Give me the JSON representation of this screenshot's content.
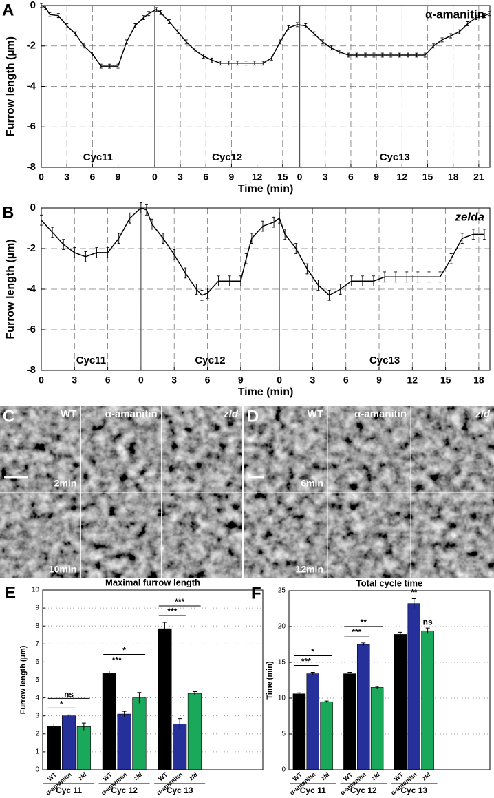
{
  "chart_data": [
    {
      "type": "line",
      "panel": "A",
      "title": "α-amanitin",
      "title_italic": false,
      "x_label": "Time (min)",
      "y_label": "Furrow length (µm)",
      "annotations": [
        "Cyc11",
        "Cyc12",
        "Cyc13"
      ],
      "boundaries": [
        13.3,
        30.3
      ],
      "xlim": [
        0,
        52.6
      ],
      "ylim": [
        -8,
        0
      ],
      "grid": true,
      "yticks": [
        0,
        -2,
        -4,
        -6,
        -8
      ],
      "xticks": [
        0,
        3,
        6,
        9,
        {
          "value": 13.3,
          "label": "0"
        },
        {
          "value": 16.3,
          "label": "3"
        },
        {
          "value": 19.3,
          "label": "6"
        },
        {
          "value": 22.3,
          "label": "9"
        },
        {
          "value": 25.3,
          "label": "12"
        },
        {
          "value": 28.3,
          "label": "15"
        },
        {
          "value": 30.3,
          "label": "0"
        },
        {
          "value": 33.3,
          "label": "3"
        },
        {
          "value": 36.3,
          "label": "6"
        },
        {
          "value": 39.3,
          "label": "9"
        },
        {
          "value": 42.3,
          "label": "12"
        },
        {
          "value": 45.3,
          "label": "15"
        },
        {
          "value": 48.3,
          "label": "18"
        },
        {
          "value": 51.3,
          "label": "21"
        }
      ],
      "x": [
        0,
        0.5,
        1,
        2,
        3,
        4,
        5,
        6,
        7,
        8,
        9,
        10,
        11,
        12,
        12.6,
        13.5,
        14,
        15,
        16,
        17,
        18,
        19,
        20,
        21,
        22,
        23,
        24,
        25,
        26,
        27,
        28,
        29,
        30,
        31,
        32,
        33,
        34,
        35,
        36,
        37,
        38,
        39,
        40,
        41,
        42,
        43,
        44,
        45,
        46,
        47,
        48,
        49,
        50,
        51,
        52,
        52.6
      ],
      "series": [
        {
          "color": "#000000",
          "values": [
            0,
            -0.1,
            -0.45,
            -0.5,
            -1.0,
            -1.4,
            -2.0,
            -2.4,
            -3.0,
            -3.0,
            -3.0,
            -1.8,
            -1.0,
            -0.6,
            -0.4,
            -0.2,
            -0.35,
            -0.8,
            -1.3,
            -1.8,
            -2.2,
            -2.5,
            -2.7,
            -2.85,
            -2.85,
            -2.85,
            -2.85,
            -2.85,
            -2.85,
            -2.6,
            -1.8,
            -1.1,
            -0.95,
            -1.0,
            -1.4,
            -1.8,
            -2.1,
            -2.3,
            -2.45,
            -2.45,
            -2.45,
            -2.45,
            -2.45,
            -2.45,
            -2.45,
            -2.45,
            -2.45,
            -2.45,
            -2.0,
            -1.7,
            -1.5,
            -1.3,
            -0.9,
            -0.6,
            -0.5,
            -0.4
          ],
          "errors": [
            0.1,
            0.1,
            0.1,
            0.1,
            0.1,
            0.1,
            0.1,
            0.1,
            0.1,
            0.1,
            0.1,
            0.1,
            0.1,
            0.1,
            0.1,
            0.1,
            0.1,
            0.1,
            0.1,
            0.1,
            0.1,
            0.1,
            0.1,
            0.1,
            0.1,
            0.1,
            0.1,
            0.1,
            0.1,
            0.1,
            0.1,
            0.1,
            0.1,
            0.1,
            0.1,
            0.1,
            0.1,
            0.1,
            0.1,
            0.1,
            0.1,
            0.1,
            0.1,
            0.1,
            0.1,
            0.1,
            0.1,
            0.1,
            0.1,
            0.1,
            0.1,
            0.1,
            0.1,
            0.1,
            0.1,
            0.1
          ]
        }
      ]
    },
    {
      "type": "line",
      "panel": "B",
      "title": "zelda",
      "title_italic": true,
      "x_label": "Time (min)",
      "y_label": "Furrow length (µm)",
      "annotations": [
        "Cyc11",
        "Cyc12",
        "Cyc13"
      ],
      "boundaries": [
        9,
        21.5
      ],
      "xlim": [
        0,
        40.5
      ],
      "ylim": [
        -8,
        0
      ],
      "grid": true,
      "yticks": [
        0,
        -2,
        -4,
        -6,
        -8
      ],
      "xticks": [
        0,
        3,
        6,
        {
          "value": 9,
          "label": "0"
        },
        {
          "value": 12,
          "label": "3"
        },
        {
          "value": 15,
          "label": "6"
        },
        {
          "value": 18,
          "label": "9"
        },
        {
          "value": 21.5,
          "label": "0"
        },
        {
          "value": 24.5,
          "label": "3"
        },
        {
          "value": 27.5,
          "label": "6"
        },
        {
          "value": 30.5,
          "label": "9"
        },
        {
          "value": 33.5,
          "label": "12"
        },
        {
          "value": 36.5,
          "label": "15"
        },
        {
          "value": 39.5,
          "label": "18"
        }
      ],
      "x": [
        0,
        1,
        2,
        3,
        4,
        5,
        6,
        7,
        8,
        9,
        9.5,
        10,
        11,
        12,
        13,
        14,
        14.5,
        15,
        16,
        17,
        18,
        18.5,
        19,
        20,
        21,
        21.5,
        22,
        23,
        24,
        25,
        26,
        27,
        28,
        29,
        30,
        31,
        32,
        33,
        34,
        35,
        36,
        37,
        38,
        39,
        40
      ],
      "series": [
        {
          "color": "#000000",
          "values": [
            -0.6,
            -1.2,
            -1.8,
            -2.2,
            -2.4,
            -2.2,
            -2.2,
            -1.5,
            -0.5,
            0,
            -0.1,
            -0.8,
            -1.5,
            -2.3,
            -3.2,
            -4.0,
            -4.3,
            -4.2,
            -3.6,
            -3.6,
            -3.6,
            -2.5,
            -1.5,
            -0.9,
            -0.7,
            -0.5,
            -1.3,
            -2.0,
            -3.0,
            -3.8,
            -4.3,
            -4.0,
            -3.6,
            -3.6,
            -3.6,
            -3.4,
            -3.4,
            -3.4,
            -3.4,
            -3.4,
            -3.4,
            -2.5,
            -1.5,
            -1.3,
            -1.3
          ],
          "errors": [
            0.25,
            0.25,
            0.25,
            0.25,
            0.25,
            0.25,
            0.25,
            0.25,
            0.25,
            0.25,
            0.25,
            0.25,
            0.25,
            0.25,
            0.25,
            0.25,
            0.25,
            0.25,
            0.25,
            0.25,
            0.25,
            0.25,
            0.25,
            0.25,
            0.25,
            0.25,
            0.25,
            0.25,
            0.25,
            0.25,
            0.25,
            0.25,
            0.25,
            0.25,
            0.25,
            0.25,
            0.25,
            0.25,
            0.25,
            0.25,
            0.25,
            0.25,
            0.25,
            0.25,
            0.25
          ]
        }
      ]
    },
    {
      "type": "bar",
      "panel": "E",
      "title": "Maximal furrow length",
      "y_label": "Furrow length (µm)",
      "groups": [
        "Cyc 11",
        "Cyc 12",
        "Cyc 13"
      ],
      "ylim": [
        0,
        10
      ],
      "yticks": [
        0,
        1,
        2,
        3,
        4,
        5,
        6,
        7,
        8,
        9,
        10
      ],
      "grid": true,
      "significance_style": [
        "bracket",
        "bracket",
        "bracket"
      ],
      "series": [
        {
          "name": "WT",
          "color": "#000000",
          "italic": false,
          "values": [
            2.4,
            5.35,
            7.85
          ],
          "errors": [
            0.15,
            0.15,
            0.35
          ]
        },
        {
          "name": "α-amanitin",
          "color": "#26309b",
          "italic": false,
          "values": [
            3.0,
            3.1,
            2.55
          ],
          "errors": [
            0.05,
            0.15,
            0.3
          ],
          "significance": [
            "*",
            "***",
            "***"
          ]
        },
        {
          "name": "zld",
          "color": "#1aa85a",
          "italic": true,
          "values": [
            2.4,
            4.0,
            4.25
          ],
          "errors": [
            0.2,
            0.3,
            0.1
          ],
          "significance": [
            "ns",
            "*",
            "***"
          ]
        }
      ]
    },
    {
      "type": "bar",
      "panel": "F",
      "title": "Total cycle time",
      "y_label": "Time (min)",
      "groups": [
        "Cyc 11",
        "Cyc 12",
        "Cyc 13"
      ],
      "ylim": [
        0,
        25
      ],
      "yticks": [
        0,
        5,
        10,
        15,
        20,
        25
      ],
      "grid": true,
      "significance_style": [
        "bracket",
        "bracket",
        "above"
      ],
      "series": [
        {
          "name": "WT",
          "color": "#000000",
          "italic": false,
          "values": [
            10.6,
            13.4,
            18.9
          ],
          "errors": [
            0.15,
            0.2,
            0.3
          ]
        },
        {
          "name": "α-amanitin",
          "color": "#26309b",
          "italic": false,
          "values": [
            13.4,
            17.5,
            23.2
          ],
          "errors": [
            0.2,
            0.2,
            0.7
          ],
          "significance": [
            "***",
            "***",
            "**"
          ]
        },
        {
          "name": "zld",
          "color": "#1aa85a",
          "italic": true,
          "values": [
            9.5,
            11.5,
            19.4
          ],
          "errors": [
            0.1,
            0.15,
            0.4
          ],
          "significance": [
            "*",
            "**",
            "ns"
          ]
        }
      ]
    }
  ],
  "images": [
    {
      "panel": "C",
      "columns": [
        "WT",
        "α-amanitin",
        "zld"
      ],
      "times": [
        "2min",
        "10min"
      ]
    },
    {
      "panel": "D",
      "columns": [
        "WT",
        "α-amanitin",
        "zld"
      ],
      "times": [
        "6min",
        "12min"
      ]
    }
  ]
}
